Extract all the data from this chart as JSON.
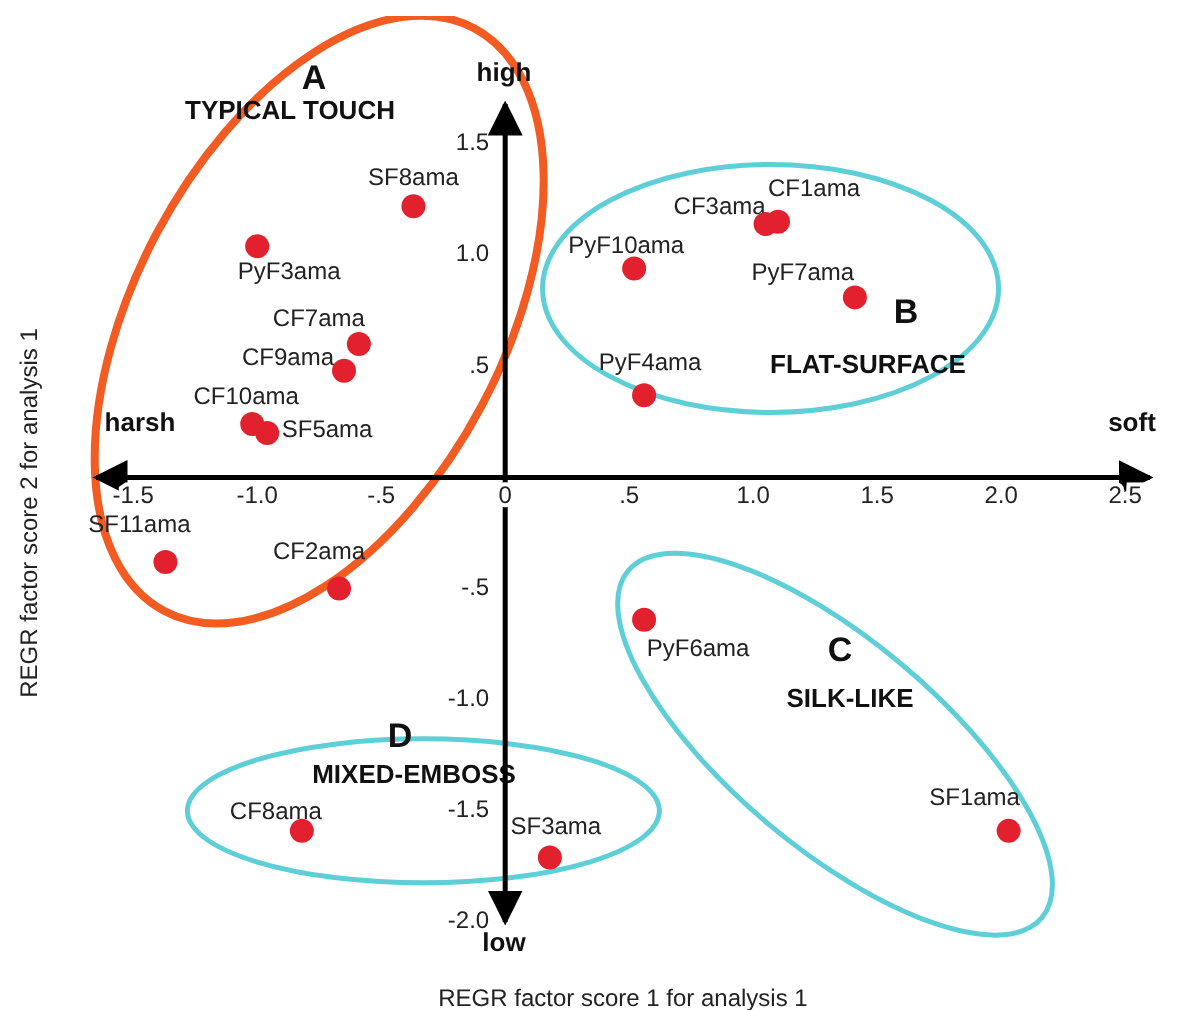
{
  "chart_data": {
    "type": "scatter",
    "xlabel": "REGR factor score   1 for analysis   1",
    "ylabel": "REGR factor score   2 for analysis   1",
    "x": [
      -0.37,
      -1.0,
      -0.59,
      -0.65,
      -1.02,
      -0.96,
      -1.37,
      -0.67,
      0.56,
      2.03,
      -0.82,
      0.18,
      1.1,
      1.05,
      0.52,
      1.41,
      0.56
    ],
    "values": [
      1.22,
      1.04,
      0.6,
      0.48,
      0.24,
      0.2,
      -0.38,
      -0.5,
      -0.64,
      -1.59,
      -1.59,
      -1.71,
      1.15,
      1.14,
      0.94,
      0.81,
      0.37
    ],
    "value_labels": [
      "SF8ama",
      "PyF3ama",
      "CF7ama",
      "CF9ama",
      "CF10ama",
      "SF5ama",
      "SF11ama",
      "CF2ama",
      "PyF6ama",
      "SF1ama",
      "CF8ama",
      "SF3ama",
      "CF1ama",
      "CF3ama",
      "PyF10ama",
      "PyF7ama",
      "PyF4ama"
    ],
    "color": "#e3202d",
    "marker": "circle",
    "xlim": [
      -1.65,
      2.6
    ],
    "ylim": [
      -2.0,
      1.68
    ],
    "xticks": [
      -1.5,
      {
        "value": -1,
        "label": "-1.0"
      },
      {
        "value": -0.5,
        "label": "-.5"
      },
      0,
      {
        "value": 0.5,
        "label": ".5"
      },
      {
        "value": 1,
        "label": "1.0"
      },
      1.5,
      {
        "value": 2,
        "label": "2.0"
      },
      2.5
    ],
    "yticks": [
      1.5,
      {
        "value": 1,
        "label": "1.0"
      },
      {
        "value": 0.5,
        "label": ".5"
      },
      {
        "value": -0.5,
        "label": "-.5"
      },
      {
        "value": -1,
        "label": "-1.0"
      },
      -1.5,
      {
        "value": -2,
        "label": "-2.0"
      }
    ],
    "annotations": [
      "A",
      "TYPICAL TOUCH",
      "high",
      "B",
      "FLAT-SURFACE",
      "harsh",
      "soft",
      "C",
      "SILK-LIKE",
      "D",
      "MIXED-EMBOSS",
      "low"
    ]
  }
}
